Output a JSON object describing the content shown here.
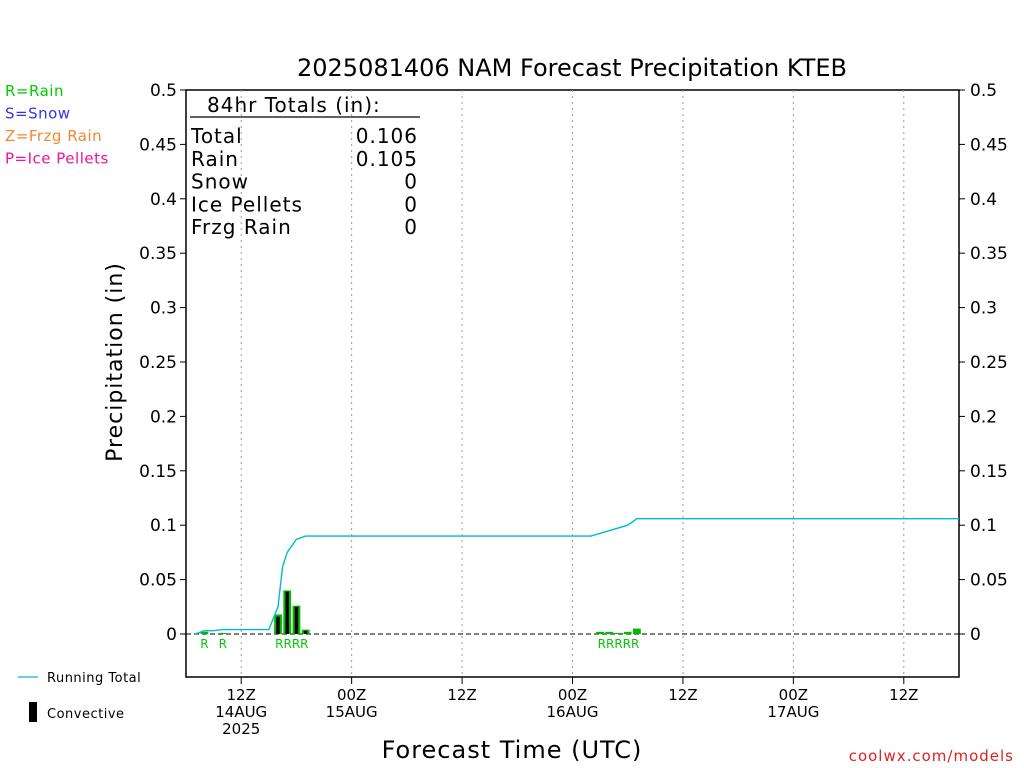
{
  "chart_data": {
    "type": "bar",
    "title": "2025081406 NAM Forecast Precipitation KTEB",
    "xlabel": "Forecast Time (UTC)",
    "ylabel": "Precipitation (in)",
    "ylim": [
      0,
      0.5
    ],
    "yticks": [
      "0",
      "0.05",
      "0.1",
      "0.15",
      "0.2",
      "0.25",
      "0.3",
      "0.35",
      "0.4",
      "0.45",
      "0.5"
    ],
    "x_unit": "forecast hour",
    "xlim": [
      0,
      84
    ],
    "xticks": [
      {
        "hour": 6,
        "lines": [
          "12Z",
          "14AUG",
          "2025"
        ]
      },
      {
        "hour": 18,
        "lines": [
          "00Z",
          "15AUG"
        ]
      },
      {
        "hour": 30,
        "lines": [
          "12Z"
        ]
      },
      {
        "hour": 42,
        "lines": [
          "00Z",
          "16AUG"
        ]
      },
      {
        "hour": 54,
        "lines": [
          "12Z"
        ]
      },
      {
        "hour": 66,
        "lines": [
          "00Z",
          "17AUG"
        ]
      },
      {
        "hour": 78,
        "lines": [
          "12Z"
        ]
      }
    ],
    "legend": [
      "R=Rain",
      "S=Snow",
      "Z=Frzg Rain",
      "P=Ice Pellets"
    ],
    "legend_colors": [
      "#00cc00",
      "#3333ee",
      "#ee8833",
      "#ee1199"
    ],
    "bottom_legend": [
      "Running Total",
      "Convective"
    ],
    "totals": {
      "heading": "84hr Totals (in):",
      "rows": [
        {
          "label": "Total",
          "value": "0.106"
        },
        {
          "label": "Rain",
          "value": "0.105"
        },
        {
          "label": "Snow",
          "value": "0"
        },
        {
          "label": "Ice Pellets",
          "value": "0"
        },
        {
          "label": "Frzg Rain",
          "value": "0"
        }
      ]
    },
    "series": [
      {
        "name": "Rain",
        "color": "#00bb00",
        "points": [
          {
            "hour": 2,
            "value": 0.002
          },
          {
            "hour": 4,
            "value": 0.001
          },
          {
            "hour": 10,
            "value": 0.018
          },
          {
            "hour": 11,
            "value": 0.04
          },
          {
            "hour": 12,
            "value": 0.026
          },
          {
            "hour": 13,
            "value": 0.004
          },
          {
            "hour": 45,
            "value": 0.002
          },
          {
            "hour": 46,
            "value": 0.002
          },
          {
            "hour": 47,
            "value": 0.001
          },
          {
            "hour": 48,
            "value": 0.002
          },
          {
            "hour": 49,
            "value": 0.005
          }
        ]
      },
      {
        "name": "Convective",
        "color": "#000000",
        "points": [
          {
            "hour": 10,
            "value": 0.016
          },
          {
            "hour": 11,
            "value": 0.039
          },
          {
            "hour": 12,
            "value": 0.025
          },
          {
            "hour": 13,
            "value": 0.003
          }
        ]
      }
    ],
    "running_total": {
      "name": "Running Total",
      "color": "#00bbcc",
      "points": [
        {
          "hour": 1,
          "value": 0
        },
        {
          "hour": 2,
          "value": 0.003
        },
        {
          "hour": 3,
          "value": 0.003
        },
        {
          "hour": 4,
          "value": 0.004
        },
        {
          "hour": 9,
          "value": 0.004
        },
        {
          "hour": 10,
          "value": 0.025
        },
        {
          "hour": 10.5,
          "value": 0.062
        },
        {
          "hour": 11,
          "value": 0.075
        },
        {
          "hour": 12,
          "value": 0.087
        },
        {
          "hour": 13,
          "value": 0.09
        },
        {
          "hour": 44,
          "value": 0.09
        },
        {
          "hour": 48,
          "value": 0.1
        },
        {
          "hour": 49,
          "value": 0.106
        },
        {
          "hour": 84,
          "value": 0.106
        }
      ]
    },
    "type_markers": [
      {
        "hour": 2,
        "text": "R"
      },
      {
        "hour": 4,
        "text": "R"
      },
      {
        "hour": 11.5,
        "text": "RRRR"
      },
      {
        "hour": 47,
        "text": "RRRRR"
      }
    ],
    "zero_line": "dashed",
    "grid": "vertical dotted at 12-hour ticks",
    "watermark": "coolwx.com/models"
  }
}
